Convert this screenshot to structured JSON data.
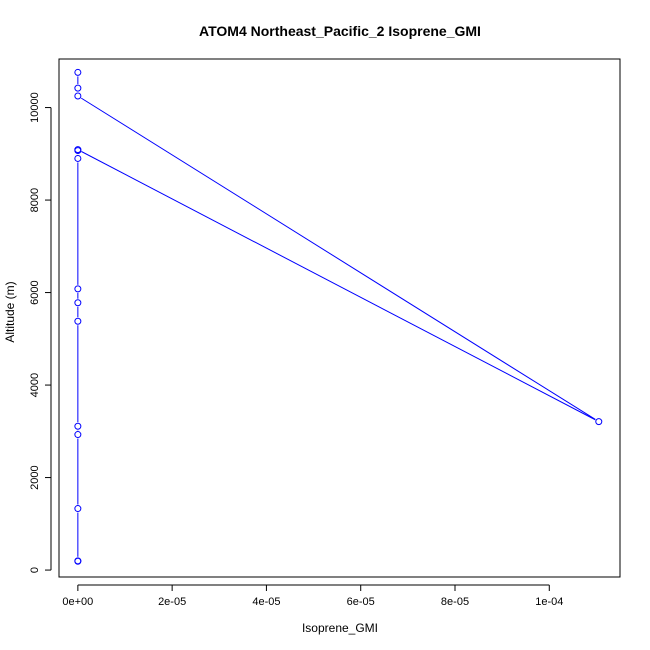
{
  "chart_data": {
    "type": "line",
    "title": "ATOM4 Northeast_Pacific_2 Isoprene_GMI",
    "xlabel": "Isoprene_GMI",
    "ylabel": "Altitude (m)",
    "xlim": [
      -4e-06,
      0.000115
    ],
    "ylim": [
      -150,
      11050
    ],
    "x_ticks": [
      {
        "value": 0,
        "label": "0e+00"
      },
      {
        "value": 2e-05,
        "label": "2e-05"
      },
      {
        "value": 4e-05,
        "label": "4e-05"
      },
      {
        "value": 6e-05,
        "label": "6e-05"
      },
      {
        "value": 8e-05,
        "label": "8e-05"
      },
      {
        "value": 0.0001,
        "label": "1e-04"
      }
    ],
    "y_ticks": [
      {
        "value": 0,
        "label": "0"
      },
      {
        "value": 2000,
        "label": "2000"
      },
      {
        "value": 4000,
        "label": "4000"
      },
      {
        "value": 6000,
        "label": "6000"
      },
      {
        "value": 8000,
        "label": "8000"
      },
      {
        "value": 10000,
        "label": "10000"
      }
    ],
    "grid": false,
    "series": [
      {
        "color": "#0000ff",
        "marker": "open-circle",
        "points": [
          {
            "x": 0,
            "y": 190
          },
          {
            "x": 0,
            "y": 200
          },
          {
            "x": 0,
            "y": 1330
          },
          {
            "x": 0,
            "y": 2930
          },
          {
            "x": 0,
            "y": 3110
          },
          {
            "x": 0,
            "y": 5380
          },
          {
            "x": 0,
            "y": 5780
          },
          {
            "x": 0,
            "y": 6080
          },
          {
            "x": 0,
            "y": 8900
          },
          {
            "x": 0,
            "y": 9070
          },
          {
            "x": 0,
            "y": 9090
          },
          {
            "x": 0.0001105,
            "y": 3210
          },
          {
            "x": 0,
            "y": 10250
          },
          {
            "x": 0,
            "y": 10420
          },
          {
            "x": 0,
            "y": 10760
          }
        ]
      }
    ]
  }
}
